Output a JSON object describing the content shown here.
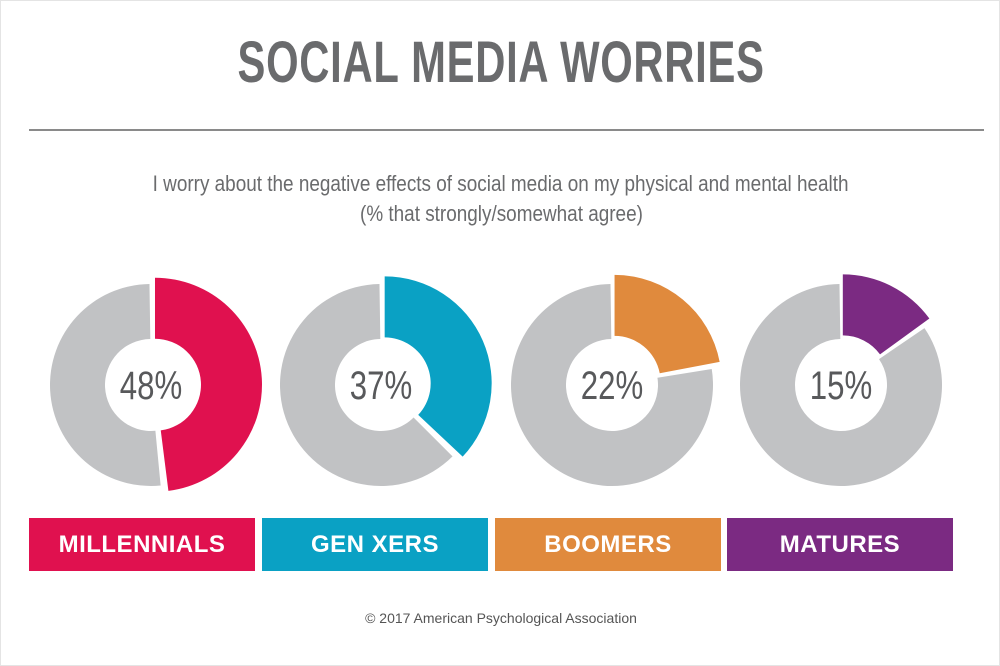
{
  "title": "SOCIAL MEDIA WORRIES",
  "subtitle_line1": "I worry about the negative effects of social media on my physical and mental health",
  "subtitle_line2": "(% that strongly/somewhat agree)",
  "footer": "© 2017 American Psychological Association",
  "chart_data": {
    "type": "pie",
    "variant": "donut",
    "title": "SOCIAL MEDIA WORRIES",
    "categories": [
      "MILLENNIALS",
      "GEN XERS",
      "BOOMERS",
      "MATURES"
    ],
    "values": [
      48,
      37,
      22,
      15
    ],
    "value_labels": [
      "48%",
      "37%",
      "22%",
      "15%"
    ],
    "colors": [
      "#e0114f",
      "#0aa1c4",
      "#e08a3d",
      "#7b2a82"
    ],
    "remainder_color": "#c1c2c4",
    "unit": "%"
  }
}
